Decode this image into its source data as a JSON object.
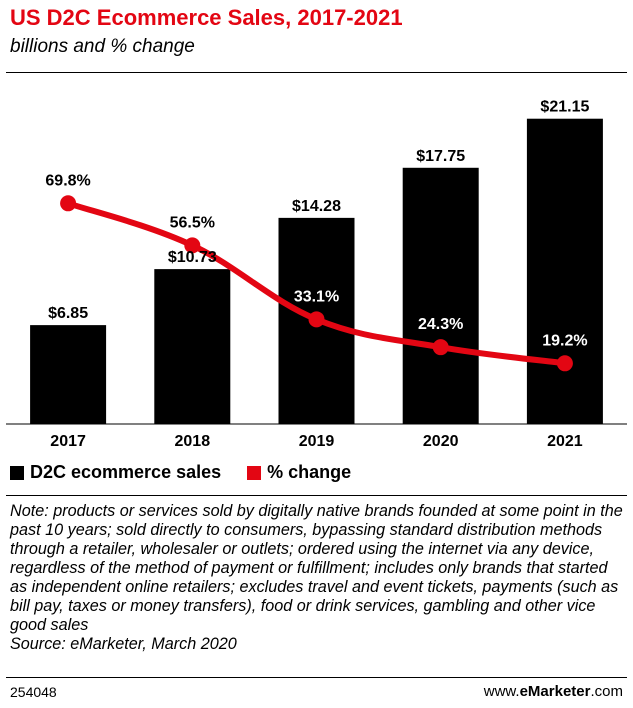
{
  "header": {
    "title": "US D2C Ecommerce Sales, 2017-2021",
    "subtitle": "billions and % change"
  },
  "legend": {
    "bars_label": "D2C ecommerce sales",
    "line_label": "% change"
  },
  "colors": {
    "bar": "#000000",
    "line": "#e30613",
    "title": "#e30613"
  },
  "chart_data": {
    "type": "bar",
    "title": "US D2C Ecommerce Sales, 2017-2021",
    "subtitle": "billions and % change",
    "categories": [
      "2017",
      "2018",
      "2019",
      "2020",
      "2021"
    ],
    "series": [
      {
        "name": "D2C ecommerce sales",
        "type": "bar",
        "values": [
          6.85,
          10.73,
          14.28,
          17.75,
          21.15
        ],
        "labels": [
          "$6.85",
          "$10.73",
          "$14.28",
          "$17.75",
          "$21.15"
        ]
      },
      {
        "name": "% change",
        "type": "line",
        "values": [
          69.8,
          56.5,
          33.1,
          24.3,
          19.2
        ],
        "labels": [
          "69.8%",
          "56.5%",
          "33.1%",
          "24.3%",
          "19.2%"
        ]
      }
    ],
    "ylim": [
      0,
      23
    ],
    "y2lim": [
      0,
      105
    ],
    "legend": "bottom-left",
    "grid": false
  },
  "note": {
    "text": "Note: products or services sold by digitally native brands founded at some point in the past 10 years; sold directly to consumers, bypassing standard distribution methods through a retailer, wholesaler or outlets; ordered using the internet via any device, regardless of the method of payment or fulfillment; includes only brands that started as independent online retailers; excludes travel and event tickets, payments (such as bill pay, taxes or money transfers), food or drink services, gambling and other vice good sales",
    "source": "Source: eMarketer, March 2020"
  },
  "footer": {
    "id": "254048",
    "brand_prefix": "www.",
    "brand_name": "eMarketer",
    "brand_suffix": ".com"
  }
}
